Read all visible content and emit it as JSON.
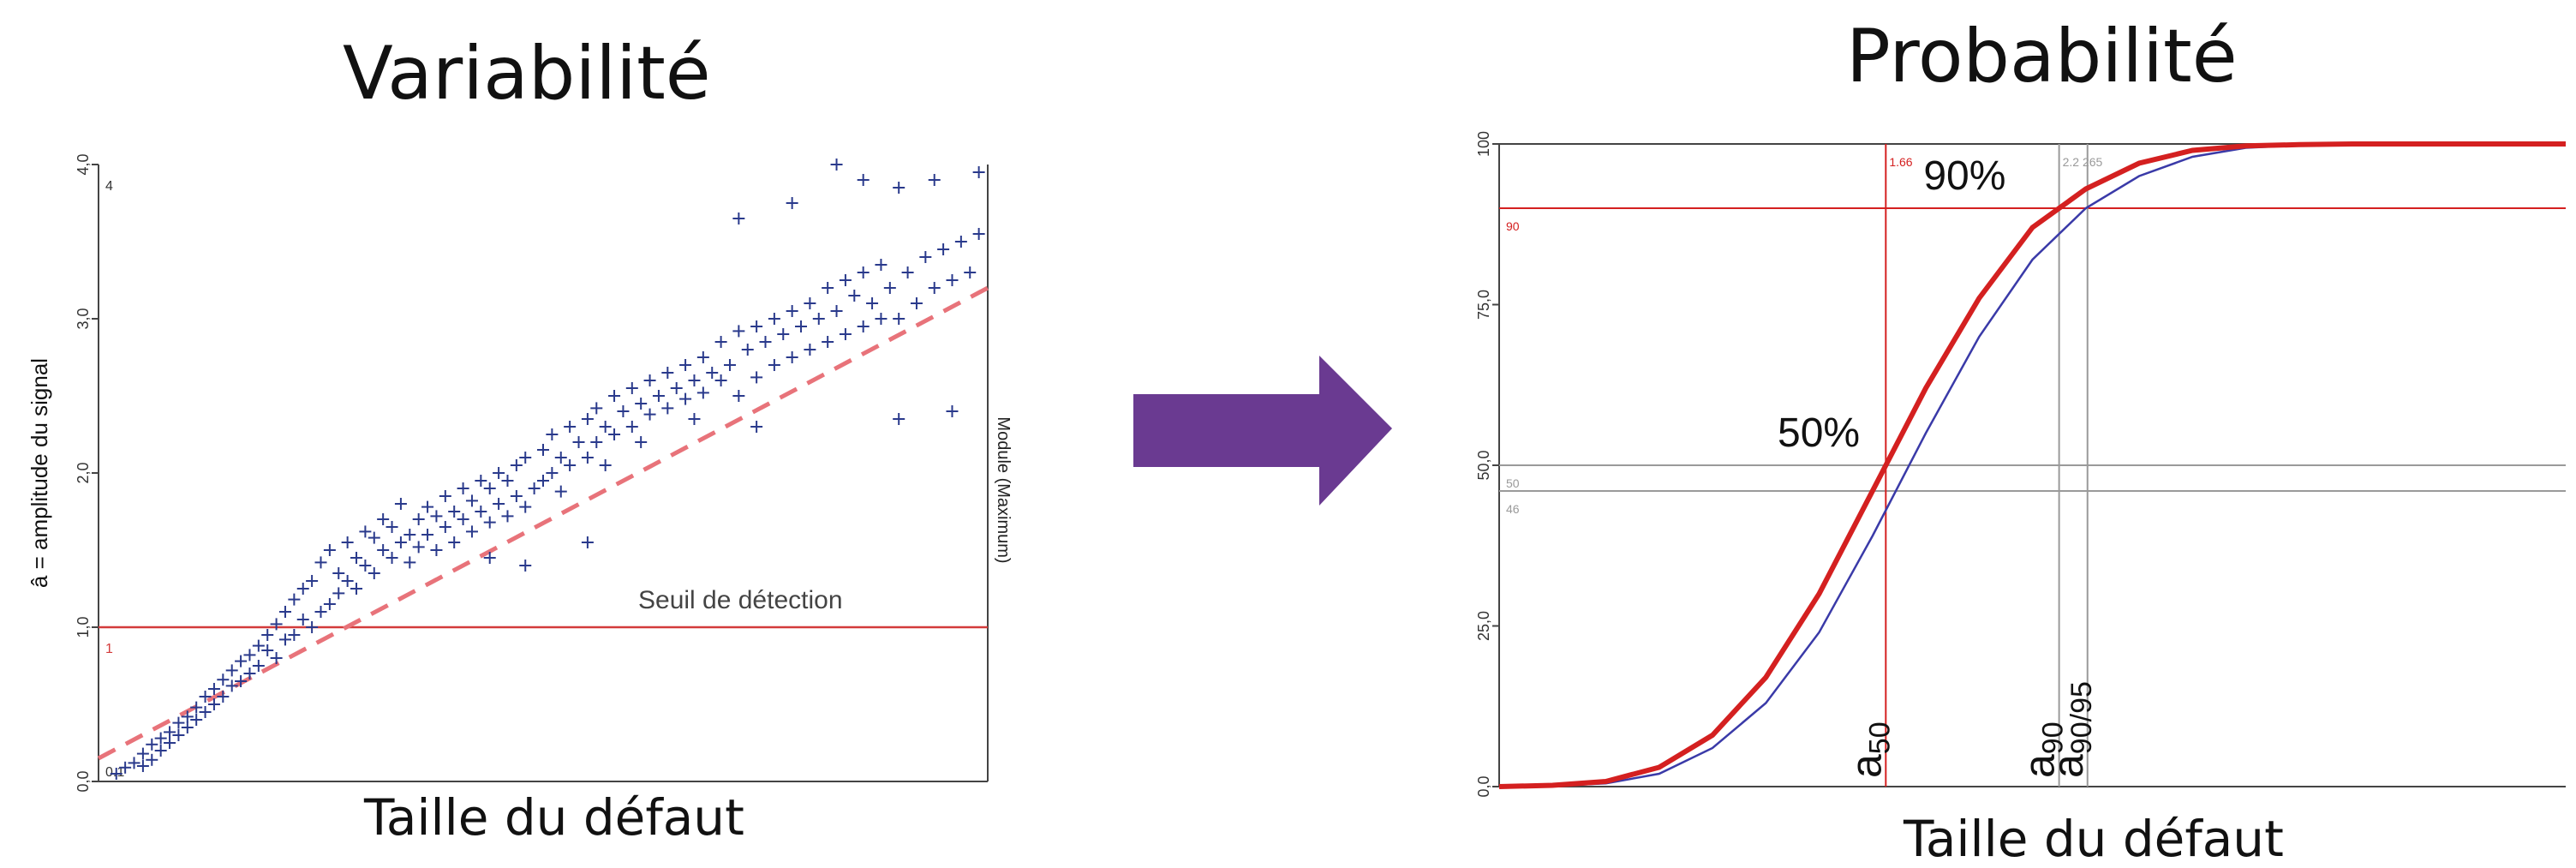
{
  "titles": {
    "left": "Variabilité",
    "right": "Probabilité"
  },
  "xlabels": {
    "left": "Taille du défaut",
    "right": "Taille du défaut"
  },
  "colors": {
    "points": "#2a3a8c",
    "trend": "#e8737a",
    "threshold": "#d33b3b",
    "pod": "#d42020",
    "pod_lower": "#3a3aa8",
    "arrow": "#6a3a91"
  },
  "chart_data": [
    {
      "type": "scatter",
      "title": "Variabilité",
      "xlabel": "Taille du défaut",
      "ylabel": "â = amplitude du signal",
      "ylabel_right": "Module (Maximum)",
      "ylim": [
        0.0,
        4.0
      ],
      "yticks": [
        "0,0",
        "1,0",
        "2,0",
        "3,0",
        "4,0"
      ],
      "corner_labels": {
        "top": "4",
        "bottom": "0.1"
      },
      "threshold": {
        "value": 1.0,
        "label": "Seuil de détection",
        "tick_label": "1"
      },
      "trend": {
        "type": "dashed-linear",
        "y_start": 0.15,
        "y_end": 3.2
      },
      "points": [
        [
          0.02,
          0.05
        ],
        [
          0.03,
          0.09
        ],
        [
          0.04,
          0.12
        ],
        [
          0.05,
          0.1
        ],
        [
          0.05,
          0.18
        ],
        [
          0.06,
          0.14
        ],
        [
          0.06,
          0.24
        ],
        [
          0.07,
          0.2
        ],
        [
          0.07,
          0.28
        ],
        [
          0.08,
          0.25
        ],
        [
          0.08,
          0.32
        ],
        [
          0.09,
          0.3
        ],
        [
          0.09,
          0.38
        ],
        [
          0.1,
          0.35
        ],
        [
          0.1,
          0.42
        ],
        [
          0.11,
          0.4
        ],
        [
          0.11,
          0.48
        ],
        [
          0.12,
          0.45
        ],
        [
          0.12,
          0.55
        ],
        [
          0.13,
          0.5
        ],
        [
          0.13,
          0.6
        ],
        [
          0.14,
          0.55
        ],
        [
          0.14,
          0.66
        ],
        [
          0.15,
          0.62
        ],
        [
          0.15,
          0.72
        ],
        [
          0.16,
          0.65
        ],
        [
          0.16,
          0.78
        ],
        [
          0.17,
          0.7
        ],
        [
          0.17,
          0.82
        ],
        [
          0.18,
          0.75
        ],
        [
          0.18,
          0.88
        ],
        [
          0.19,
          0.85
        ],
        [
          0.19,
          0.95
        ],
        [
          0.2,
          0.8
        ],
        [
          0.2,
          1.02
        ],
        [
          0.21,
          0.92
        ],
        [
          0.21,
          1.1
        ],
        [
          0.22,
          0.95
        ],
        [
          0.22,
          1.18
        ],
        [
          0.23,
          1.05
        ],
        [
          0.23,
          1.25
        ],
        [
          0.24,
          1.0
        ],
        [
          0.24,
          1.3
        ],
        [
          0.25,
          1.1
        ],
        [
          0.25,
          1.42
        ],
        [
          0.26,
          1.15
        ],
        [
          0.26,
          1.5
        ],
        [
          0.27,
          1.22
        ],
        [
          0.27,
          1.35
        ],
        [
          0.28,
          1.3
        ],
        [
          0.28,
          1.55
        ],
        [
          0.29,
          1.25
        ],
        [
          0.29,
          1.45
        ],
        [
          0.3,
          1.4
        ],
        [
          0.3,
          1.62
        ],
        [
          0.31,
          1.35
        ],
        [
          0.31,
          1.58
        ],
        [
          0.32,
          1.5
        ],
        [
          0.32,
          1.7
        ],
        [
          0.33,
          1.45
        ],
        [
          0.33,
          1.65
        ],
        [
          0.34,
          1.55
        ],
        [
          0.34,
          1.8
        ],
        [
          0.35,
          1.6
        ],
        [
          0.35,
          1.42
        ],
        [
          0.36,
          1.7
        ],
        [
          0.36,
          1.52
        ],
        [
          0.37,
          1.78
        ],
        [
          0.37,
          1.6
        ],
        [
          0.38,
          1.72
        ],
        [
          0.38,
          1.5
        ],
        [
          0.39,
          1.85
        ],
        [
          0.39,
          1.65
        ],
        [
          0.4,
          1.75
        ],
        [
          0.4,
          1.55
        ],
        [
          0.41,
          1.9
        ],
        [
          0.41,
          1.7
        ],
        [
          0.42,
          1.62
        ],
        [
          0.42,
          1.82
        ],
        [
          0.43,
          1.95
        ],
        [
          0.43,
          1.75
        ],
        [
          0.44,
          1.68
        ],
        [
          0.44,
          1.9
        ],
        [
          0.45,
          2.0
        ],
        [
          0.45,
          1.8
        ],
        [
          0.46,
          1.72
        ],
        [
          0.46,
          1.95
        ],
        [
          0.47,
          2.05
        ],
        [
          0.47,
          1.85
        ],
        [
          0.48,
          1.78
        ],
        [
          0.48,
          2.1
        ],
        [
          0.49,
          1.9
        ],
        [
          0.5,
          2.15
        ],
        [
          0.5,
          1.95
        ],
        [
          0.51,
          2.25
        ],
        [
          0.51,
          2.0
        ],
        [
          0.52,
          2.1
        ],
        [
          0.52,
          1.88
        ],
        [
          0.53,
          2.3
        ],
        [
          0.53,
          2.05
        ],
        [
          0.54,
          2.2
        ],
        [
          0.55,
          2.35
        ],
        [
          0.55,
          2.1
        ],
        [
          0.56,
          2.42
        ],
        [
          0.56,
          2.2
        ],
        [
          0.57,
          2.3
        ],
        [
          0.57,
          2.05
        ],
        [
          0.58,
          2.5
        ],
        [
          0.58,
          2.25
        ],
        [
          0.59,
          2.4
        ],
        [
          0.6,
          2.55
        ],
        [
          0.6,
          2.3
        ],
        [
          0.61,
          2.45
        ],
        [
          0.61,
          2.2
        ],
        [
          0.62,
          2.6
        ],
        [
          0.62,
          2.38
        ],
        [
          0.63,
          2.5
        ],
        [
          0.64,
          2.65
        ],
        [
          0.64,
          2.42
        ],
        [
          0.65,
          2.55
        ],
        [
          0.66,
          2.7
        ],
        [
          0.66,
          2.48
        ],
        [
          0.67,
          2.6
        ],
        [
          0.67,
          2.35
        ],
        [
          0.68,
          2.75
        ],
        [
          0.68,
          2.52
        ],
        [
          0.69,
          2.65
        ],
        [
          0.7,
          2.85
        ],
        [
          0.7,
          2.6
        ],
        [
          0.71,
          2.7
        ],
        [
          0.72,
          2.92
        ],
        [
          0.72,
          2.5
        ],
        [
          0.73,
          2.8
        ],
        [
          0.74,
          2.95
        ],
        [
          0.74,
          2.62
        ],
        [
          0.75,
          2.85
        ],
        [
          0.76,
          3.0
        ],
        [
          0.76,
          2.7
        ],
        [
          0.77,
          2.9
        ],
        [
          0.78,
          3.05
        ],
        [
          0.78,
          2.75
        ],
        [
          0.79,
          2.95
        ],
        [
          0.8,
          3.1
        ],
        [
          0.8,
          2.8
        ],
        [
          0.81,
          3.0
        ],
        [
          0.82,
          3.2
        ],
        [
          0.82,
          2.85
        ],
        [
          0.83,
          3.05
        ],
        [
          0.84,
          3.25
        ],
        [
          0.84,
          2.9
        ],
        [
          0.85,
          3.15
        ],
        [
          0.86,
          3.3
        ],
        [
          0.86,
          2.95
        ],
        [
          0.87,
          3.1
        ],
        [
          0.88,
          3.35
        ],
        [
          0.88,
          3.0
        ],
        [
          0.89,
          3.2
        ],
        [
          0.9,
          3.0
        ],
        [
          0.91,
          3.3
        ],
        [
          0.92,
          3.1
        ],
        [
          0.93,
          3.4
        ],
        [
          0.94,
          3.2
        ],
        [
          0.95,
          3.45
        ],
        [
          0.96,
          3.25
        ],
        [
          0.97,
          3.5
        ],
        [
          0.98,
          3.3
        ],
        [
          0.99,
          3.55
        ],
        [
          0.72,
          3.65
        ],
        [
          0.78,
          3.75
        ],
        [
          0.86,
          3.9
        ],
        [
          0.9,
          3.85
        ],
        [
          0.94,
          3.9
        ],
        [
          0.99,
          3.95
        ],
        [
          0.83,
          4.0
        ],
        [
          0.74,
          2.3
        ],
        [
          0.9,
          2.35
        ],
        [
          0.96,
          2.4
        ],
        [
          0.55,
          1.55
        ],
        [
          0.48,
          1.4
        ],
        [
          0.44,
          1.45
        ]
      ]
    },
    {
      "type": "line",
      "title": "Probabilité",
      "xlabel": "Taille du défaut",
      "ylim": [
        0.0,
        1.0
      ],
      "yticks": [
        "0,0",
        "25,0",
        "50,0",
        "75,0",
        "100"
      ],
      "series": [
        {
          "name": "",
          "style": "thick-red",
          "x": [
            0.0,
            0.05,
            0.1,
            0.15,
            0.2,
            0.25,
            0.3,
            0.35,
            0.4,
            0.45,
            0.5,
            0.55,
            0.6,
            0.65,
            0.7,
            0.75,
            0.8,
            0.85,
            0.9,
            0.95,
            1.0
          ],
          "y": [
            0.0,
            0.002,
            0.008,
            0.03,
            0.08,
            0.17,
            0.3,
            0.46,
            0.62,
            0.76,
            0.87,
            0.93,
            0.97,
            0.99,
            0.997,
            0.999,
            1.0,
            1.0,
            1.0,
            1.0,
            1.0
          ]
        },
        {
          "name": "",
          "style": "thin-blue",
          "x": [
            0.0,
            0.05,
            0.1,
            0.15,
            0.2,
            0.25,
            0.3,
            0.35,
            0.4,
            0.45,
            0.5,
            0.55,
            0.6,
            0.65,
            0.7,
            0.75,
            0.8,
            0.85,
            0.9,
            0.95,
            1.0
          ],
          "y": [
            0.0,
            0.001,
            0.005,
            0.02,
            0.06,
            0.13,
            0.24,
            0.39,
            0.55,
            0.7,
            0.82,
            0.9,
            0.95,
            0.98,
            0.994,
            0.998,
            1.0,
            1.0,
            1.0,
            1.0,
            1.0
          ]
        }
      ],
      "hlines": [
        {
          "y": 0.9,
          "label": "90%",
          "tick_label": "90",
          "color": "red"
        },
        {
          "y": 0.5,
          "label": "50%",
          "tick_label": "50",
          "color": "gray"
        },
        {
          "y": 0.46,
          "label": "",
          "tick_label": "46",
          "color": "gray"
        }
      ],
      "vlines": [
        {
          "name": "a50",
          "sub": "50",
          "base": "a",
          "tag": "1.66",
          "color": "red"
        },
        {
          "name": "a90",
          "sub": "90",
          "base": "a",
          "tag": "2.2 265",
          "color": "gray"
        },
        {
          "name": "a90/95",
          "sub": "90/95",
          "base": "a",
          "tag": "",
          "color": "gray"
        }
      ]
    }
  ]
}
